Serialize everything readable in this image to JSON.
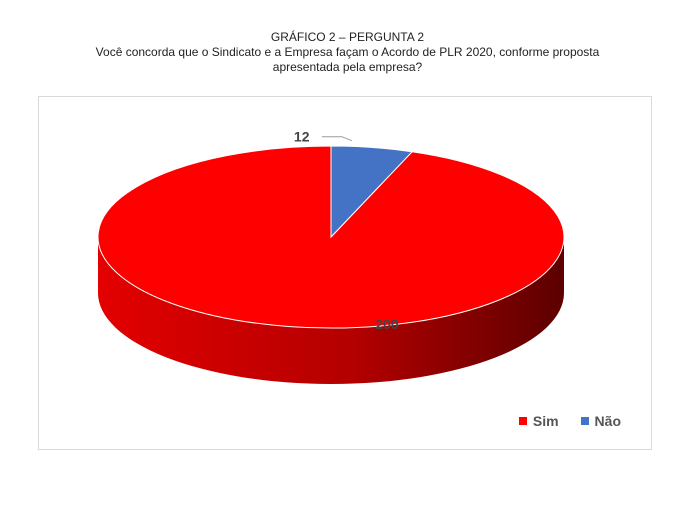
{
  "header": {
    "line1": "GRÁFICO 2 – PERGUNTA 2",
    "line2": "Você concorda que o Sindicato e a Empresa façam o Acordo de PLR 2020, conforme proposta",
    "line3": "apresentada pela empresa?"
  },
  "chart_data": {
    "type": "pie",
    "style": "3d",
    "categories": [
      "Sim",
      "Não"
    ],
    "values": [
      200,
      12
    ],
    "colors": [
      "#ff0000",
      "#4472c4"
    ],
    "data_labels": [
      "200",
      "12"
    ],
    "legend_position": "bottom-right",
    "legend": [
      "Sim",
      "Não"
    ]
  }
}
